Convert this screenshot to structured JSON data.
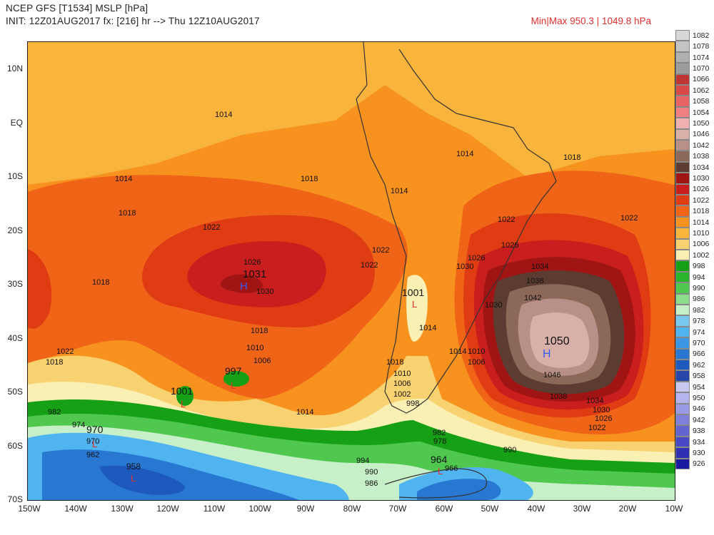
{
  "header": {
    "line1": "NCEP GFS [T1534] MSLP [hPa]",
    "line2": "INIT: 12Z01AUG2017 fx: [216] hr --> Thu 12Z10AUG2017",
    "minmax": "Min|Max 950.3 | 1049.8 hPa"
  },
  "axes": {
    "lat_ticks": [
      "10N",
      "EQ",
      "10S",
      "20S",
      "30S",
      "40S",
      "50S",
      "60S",
      "70S"
    ],
    "lon_ticks": [
      "150W",
      "140W",
      "130W",
      "120W",
      "110W",
      "100W",
      "90W",
      "80W",
      "70W",
      "60W",
      "50W",
      "40W",
      "30W",
      "20W",
      "10W"
    ]
  },
  "colorbar": {
    "levels": [
      "1082",
      "1078",
      "1074",
      "1070",
      "1066",
      "1062",
      "1058",
      "1054",
      "1050",
      "1046",
      "1042",
      "1038",
      "1034",
      "1030",
      "1026",
      "1022",
      "1018",
      "1014",
      "1010",
      "1006",
      "1002",
      "998",
      "994",
      "990",
      "986",
      "982",
      "978",
      "974",
      "970",
      "966",
      "962",
      "958",
      "954",
      "950",
      "946",
      "942",
      "938",
      "934",
      "930",
      "926"
    ],
    "colors": [
      "#d8d8d8",
      "#c4c4c4",
      "#b0b0b0",
      "#9c9c9c",
      "#c03434",
      "#d84848",
      "#e86464",
      "#f08080",
      "#f0b0b0",
      "#d8b0a8",
      "#b89088",
      "#8c6858",
      "#5c3c30",
      "#a01414",
      "#c81e1e",
      "#e03c14",
      "#f06418",
      "#f8921e",
      "#f8b43c",
      "#f8d270",
      "#faf0b4",
      "#16a016",
      "#2ab42a",
      "#50c850",
      "#8cdc8c",
      "#c8f0c8",
      "#78c8f0",
      "#50b4f0",
      "#3c96e6",
      "#2878d2",
      "#1e5abe",
      "#2846aa",
      "#c8c8f0",
      "#b4b4ee",
      "#9a9ae6",
      "#8080dc",
      "#6464d0",
      "#4848c4",
      "#3030b4",
      "#1818a0"
    ]
  },
  "labels": {
    "highs": [
      {
        "value": "1031",
        "marker": "H"
      },
      {
        "value": "1050",
        "marker": "H"
      }
    ],
    "lows": [
      {
        "value": "1001",
        "marker": "L"
      },
      {
        "value": "1001",
        "marker": "L"
      },
      {
        "value": "997",
        "marker": "L"
      },
      {
        "value": "970",
        "marker": "L"
      },
      {
        "value": "958",
        "marker": "L"
      },
      {
        "value": "964",
        "marker": "L"
      }
    ],
    "contour_labels": [
      "1014",
      "1014",
      "1014",
      "1014",
      "1018",
      "1018",
      "1018",
      "1018",
      "1018",
      "1022",
      "1022",
      "1022",
      "1022",
      "1026",
      "1026",
      "1030",
      "1030",
      "1010",
      "1006",
      "1010",
      "1006",
      "1002",
      "998",
      "982",
      "974",
      "970",
      "962",
      "1018",
      "1022",
      "1026",
      "1030",
      "1034",
      "1038",
      "1042",
      "1046",
      "1038",
      "1034",
      "1030",
      "1026",
      "1022",
      "1014",
      "1018",
      "1022",
      "982",
      "978",
      "994",
      "990",
      "986",
      "966",
      "990",
      "1014",
      "1010",
      "1006",
      "1014"
    ]
  },
  "colors": {
    "high_marker": "#3a5ae8",
    "low_marker": "#e03030",
    "coast": "#333333"
  }
}
